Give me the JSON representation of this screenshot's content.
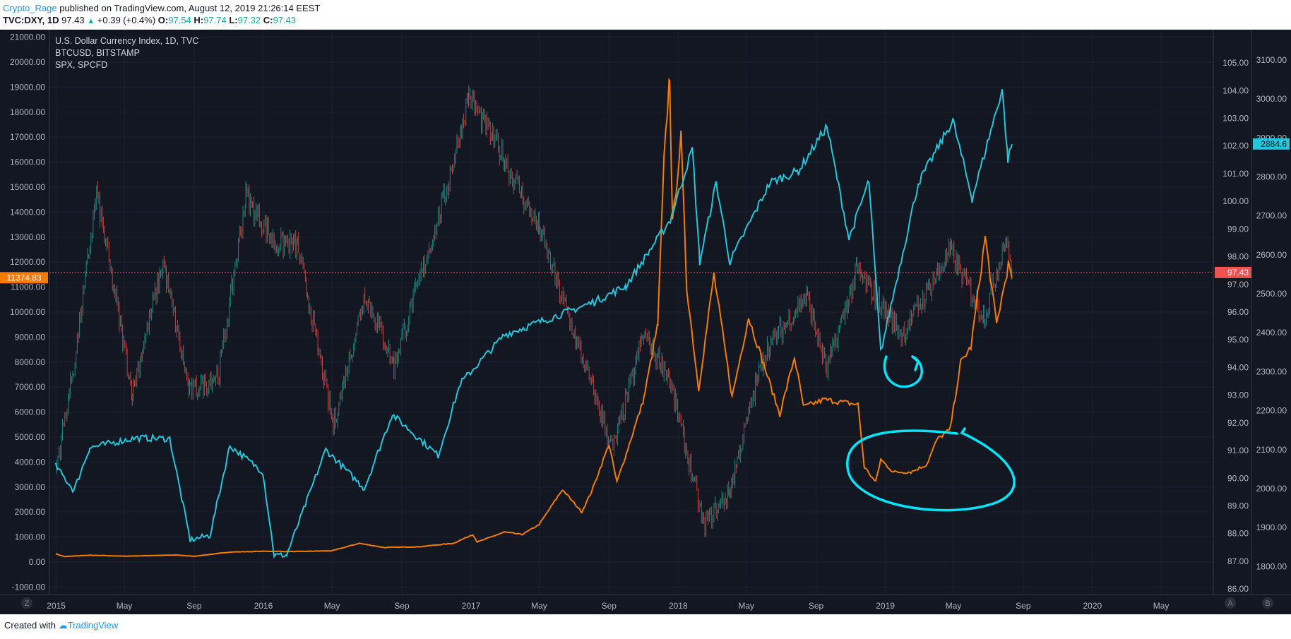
{
  "header": {
    "user": "Crypto_Rage",
    "published": " published on TradingView.com, August 12, 2019 21:26:14 EEST",
    "symbol": "TVC:DXY, 1D",
    "last": "97.43",
    "change": "+0.39 (+0.4%)",
    "o_label": "O:",
    "o_val": "97.54",
    "h_label": "H:",
    "h_val": "97.74",
    "l_label": "L:",
    "l_val": "97.32",
    "c_label": "C:",
    "c_val": "97.43"
  },
  "legend": [
    "U.S. Dollar Currency Index, 1D, TVC",
    "BTCUSD, BITSTAMP",
    "SPX, SPCFD"
  ],
  "footer": {
    "created": "Created with",
    "brand": "TradingView"
  },
  "colors": {
    "background": "#131722",
    "dxy_up": "#26a69a",
    "dxy_down": "#ef5350",
    "btc": "#f57c00",
    "spx": "#26c6da",
    "annotation": "#00e5ff",
    "hline": "#ef5350"
  },
  "chart_data": {
    "type": "line",
    "title": "U.S. Dollar Currency Index, 1D, TVC",
    "x_labels": [
      "2015",
      "May",
      "Sep",
      "2016",
      "May",
      "Sep",
      "2017",
      "May",
      "Sep",
      "2018",
      "May",
      "Sep",
      "2019",
      "May",
      "Sep",
      "2020",
      "May"
    ],
    "x_range": [
      "2014-12-20",
      "2020-08-01"
    ],
    "left_axis": {
      "series": "BTCUSD",
      "ylim": [
        -1300,
        21300
      ],
      "ticks": [
        "-1000.00",
        "0.00",
        "1000.00",
        "2000.00",
        "3000.00",
        "4000.00",
        "5000.00",
        "6000.00",
        "7000.00",
        "8000.00",
        "9000.00",
        "10000.00",
        "11000.00",
        "12000.00",
        "13000.00",
        "14000.00",
        "15000.00",
        "16000.00",
        "17000.00",
        "18000.00",
        "19000.00",
        "20000.00",
        "21000.00"
      ],
      "last": "11374.83"
    },
    "right_axis_1": {
      "series": "DXY",
      "ylim": [
        85.8,
        106.2
      ],
      "ticks": [
        "86.00",
        "87.00",
        "88.00",
        "89.00",
        "90.00",
        "91.00",
        "92.00",
        "93.00",
        "94.00",
        "95.00",
        "96.00",
        "97.00",
        "98.00",
        "99.00",
        "100.00",
        "101.00",
        "102.00",
        "103.00",
        "104.00",
        "105.00"
      ],
      "last": "97.43"
    },
    "right_axis_2": {
      "series": "SPX",
      "ylim": [
        1728,
        3178
      ],
      "ticks": [
        "1800.00",
        "1900.00",
        "2000.00",
        "2100.00",
        "2200.00",
        "2300.00",
        "2400.00",
        "2500.00",
        "2600.00",
        "2700.00",
        "2800.00",
        "2900.00",
        "3000.00",
        "3100.00"
      ],
      "last": "2884.6"
    },
    "axis_buttons": {
      "left": "Z",
      "right_a": "A",
      "right_b": "B"
    },
    "series": [
      {
        "name": "BTCUSD",
        "axis": "left",
        "color": "#f57c00",
        "points": [
          [
            "2014-12-31",
            330
          ],
          [
            "2015-01-15",
            220
          ],
          [
            "2015-03-01",
            270
          ],
          [
            "2015-05-01",
            235
          ],
          [
            "2015-08-01",
            280
          ],
          [
            "2015-09-01",
            230
          ],
          [
            "2015-11-04",
            400
          ],
          [
            "2016-01-01",
            430
          ],
          [
            "2016-03-01",
            420
          ],
          [
            "2016-05-01",
            450
          ],
          [
            "2016-06-18",
            750
          ],
          [
            "2016-08-01",
            580
          ],
          [
            "2016-10-01",
            610
          ],
          [
            "2016-12-01",
            750
          ],
          [
            "2017-01-04",
            1100
          ],
          [
            "2017-01-12",
            800
          ],
          [
            "2017-03-01",
            1200
          ],
          [
            "2017-04-01",
            1100
          ],
          [
            "2017-05-01",
            1500
          ],
          [
            "2017-06-11",
            2900
          ],
          [
            "2017-07-15",
            2000
          ],
          [
            "2017-08-01",
            2800
          ],
          [
            "2017-09-01",
            4700
          ],
          [
            "2017-09-15",
            3200
          ],
          [
            "2017-10-01",
            4300
          ],
          [
            "2017-11-01",
            6500
          ],
          [
            "2017-11-26",
            9500
          ],
          [
            "2017-12-07",
            16000
          ],
          [
            "2017-12-17",
            19500
          ],
          [
            "2017-12-22",
            13500
          ],
          [
            "2018-01-06",
            17000
          ],
          [
            "2018-01-16",
            11000
          ],
          [
            "2018-02-06",
            6900
          ],
          [
            "2018-03-05",
            11500
          ],
          [
            "2018-04-06",
            6600
          ],
          [
            "2018-05-05",
            9800
          ],
          [
            "2018-06-29",
            5900
          ],
          [
            "2018-07-25",
            8200
          ],
          [
            "2018-08-10",
            6200
          ],
          [
            "2018-09-15",
            6500
          ],
          [
            "2018-10-15",
            6400
          ],
          [
            "2018-11-14",
            6300
          ],
          [
            "2018-11-25",
            3800
          ],
          [
            "2018-12-15",
            3200
          ],
          [
            "2018-12-24",
            4100
          ],
          [
            "2019-01-15",
            3600
          ],
          [
            "2019-02-15",
            3600
          ],
          [
            "2019-03-15",
            3900
          ],
          [
            "2019-04-02",
            4900
          ],
          [
            "2019-04-25",
            5300
          ],
          [
            "2019-05-14",
            8000
          ],
          [
            "2019-06-01",
            8600
          ],
          [
            "2019-06-26",
            13000
          ],
          [
            "2019-07-16",
            9500
          ],
          [
            "2019-08-06",
            11900
          ],
          [
            "2019-08-12",
            11374.83
          ]
        ]
      },
      {
        "name": "SPX",
        "axis": "right2",
        "color": "#26c6da",
        "points": [
          [
            "2014-12-31",
            2058
          ],
          [
            "2015-02-01",
            1995
          ],
          [
            "2015-03-01",
            2105
          ],
          [
            "2015-05-21",
            2130
          ],
          [
            "2015-07-20",
            2128
          ],
          [
            "2015-08-25",
            1868
          ],
          [
            "2015-09-29",
            1880
          ],
          [
            "2015-11-03",
            2110
          ],
          [
            "2015-12-31",
            2043
          ],
          [
            "2016-01-20",
            1829
          ],
          [
            "2016-02-11",
            1829
          ],
          [
            "2016-04-20",
            2100
          ],
          [
            "2016-06-27",
            2000
          ],
          [
            "2016-08-15",
            2190
          ],
          [
            "2016-11-04",
            2085
          ],
          [
            "2016-12-13",
            2270
          ],
          [
            "2017-03-01",
            2395
          ],
          [
            "2017-06-19",
            2453
          ],
          [
            "2017-08-07",
            2480
          ],
          [
            "2017-10-01",
            2520
          ],
          [
            "2017-12-18",
            2690
          ],
          [
            "2018-01-26",
            2873
          ],
          [
            "2018-02-08",
            2581
          ],
          [
            "2018-03-09",
            2786
          ],
          [
            "2018-04-02",
            2582
          ],
          [
            "2018-06-12",
            2786
          ],
          [
            "2018-08-01",
            2815
          ],
          [
            "2018-09-20",
            2930
          ],
          [
            "2018-10-29",
            2641
          ],
          [
            "2018-12-03",
            2790
          ],
          [
            "2018-12-24",
            2351
          ],
          [
            "2019-02-28",
            2784
          ],
          [
            "2019-04-30",
            2945
          ],
          [
            "2019-06-03",
            2744
          ],
          [
            "2019-07-26",
            3025
          ],
          [
            "2019-08-05",
            2844
          ],
          [
            "2019-08-12",
            2884
          ]
        ]
      },
      {
        "name": "DXY",
        "axis": "right1",
        "style": "candles",
        "points": [
          [
            "2014-12-31",
            90.3
          ],
          [
            "2015-02-01",
            94.0
          ],
          [
            "2015-03-13",
            100.3
          ],
          [
            "2015-05-15",
            93.1
          ],
          [
            "2015-07-08",
            97.8
          ],
          [
            "2015-08-24",
            93.1
          ],
          [
            "2015-10-15",
            93.8
          ],
          [
            "2015-12-01",
            100.2
          ],
          [
            "2016-01-20",
            98.5
          ],
          [
            "2016-03-01",
            98.4
          ],
          [
            "2016-05-03",
            91.9
          ],
          [
            "2016-06-28",
            96.7
          ],
          [
            "2016-08-18",
            94.1
          ],
          [
            "2016-11-15",
            100.1
          ],
          [
            "2016-12-28",
            103.8
          ],
          [
            "2017-03-01",
            101.5
          ],
          [
            "2017-05-01",
            99.0
          ],
          [
            "2017-09-08",
            91.0
          ],
          [
            "2017-11-01",
            95.2
          ],
          [
            "2017-12-15",
            93.7
          ],
          [
            "2018-02-15",
            88.3
          ],
          [
            "2018-04-01",
            89.5
          ],
          [
            "2018-06-01",
            94.5
          ],
          [
            "2018-08-15",
            96.6
          ],
          [
            "2018-09-20",
            93.9
          ],
          [
            "2018-11-12",
            97.5
          ],
          [
            "2019-01-31",
            95.2
          ],
          [
            "2019-04-26",
            98.2
          ],
          [
            "2019-06-24",
            95.8
          ],
          [
            "2019-08-01",
            98.7
          ],
          [
            "2019-08-12",
            97.43
          ]
        ]
      }
    ]
  }
}
